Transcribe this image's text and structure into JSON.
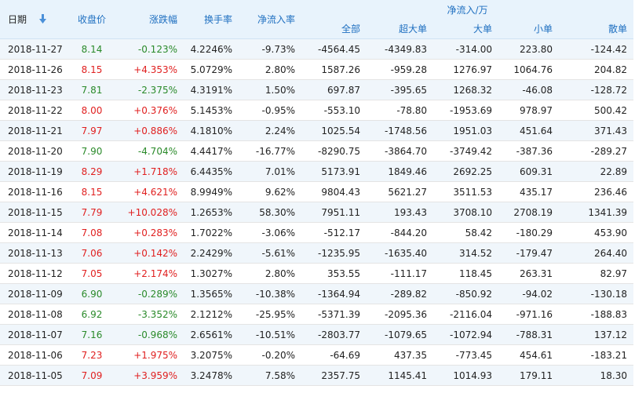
{
  "headers": {
    "date": "日期",
    "close": "收盘价",
    "change": "涨跌幅",
    "turnover": "换手率",
    "net_rate": "净流入率",
    "net_group": "净流入/万",
    "all": "全部",
    "xl": "超大单",
    "large": "大单",
    "small": "小单",
    "retail": "散单"
  },
  "icons": {
    "sort": "sort-arrow-down-icon"
  },
  "colors": {
    "up": "#e01f1f",
    "down": "#2a8a2a",
    "header_text": "#1e6fc0",
    "header_bg": "#e8f3fc"
  },
  "rows": [
    {
      "date": "2018-11-27",
      "close": "8.14",
      "change": "-0.123%",
      "turnover": "4.2246%",
      "rate": "-9.73%",
      "all": "-4564.45",
      "xl": "-4349.83",
      "large": "-314.00",
      "small": "223.80",
      "retail": "-124.42",
      "dir": "down"
    },
    {
      "date": "2018-11-26",
      "close": "8.15",
      "change": "+4.353%",
      "turnover": "5.0729%",
      "rate": "2.80%",
      "all": "1587.26",
      "xl": "-959.28",
      "large": "1276.97",
      "small": "1064.76",
      "retail": "204.82",
      "dir": "up"
    },
    {
      "date": "2018-11-23",
      "close": "7.81",
      "change": "-2.375%",
      "turnover": "4.3191%",
      "rate": "1.50%",
      "all": "697.87",
      "xl": "-395.65",
      "large": "1268.32",
      "small": "-46.08",
      "retail": "-128.72",
      "dir": "down"
    },
    {
      "date": "2018-11-22",
      "close": "8.00",
      "change": "+0.376%",
      "turnover": "5.1453%",
      "rate": "-0.95%",
      "all": "-553.10",
      "xl": "-78.80",
      "large": "-1953.69",
      "small": "978.97",
      "retail": "500.42",
      "dir": "up"
    },
    {
      "date": "2018-11-21",
      "close": "7.97",
      "change": "+0.886%",
      "turnover": "4.1810%",
      "rate": "2.24%",
      "all": "1025.54",
      "xl": "-1748.56",
      "large": "1951.03",
      "small": "451.64",
      "retail": "371.43",
      "dir": "up"
    },
    {
      "date": "2018-11-20",
      "close": "7.90",
      "change": "-4.704%",
      "turnover": "4.4417%",
      "rate": "-16.77%",
      "all": "-8290.75",
      "xl": "-3864.70",
      "large": "-3749.42",
      "small": "-387.36",
      "retail": "-289.27",
      "dir": "down"
    },
    {
      "date": "2018-11-19",
      "close": "8.29",
      "change": "+1.718%",
      "turnover": "6.4435%",
      "rate": "7.01%",
      "all": "5173.91",
      "xl": "1849.46",
      "large": "2692.25",
      "small": "609.31",
      "retail": "22.89",
      "dir": "up"
    },
    {
      "date": "2018-11-16",
      "close": "8.15",
      "change": "+4.621%",
      "turnover": "8.9949%",
      "rate": "9.62%",
      "all": "9804.43",
      "xl": "5621.27",
      "large": "3511.53",
      "small": "435.17",
      "retail": "236.46",
      "dir": "up"
    },
    {
      "date": "2018-11-15",
      "close": "7.79",
      "change": "+10.028%",
      "turnover": "1.2653%",
      "rate": "58.30%",
      "all": "7951.11",
      "xl": "193.43",
      "large": "3708.10",
      "small": "2708.19",
      "retail": "1341.39",
      "dir": "up"
    },
    {
      "date": "2018-11-14",
      "close": "7.08",
      "change": "+0.283%",
      "turnover": "1.7022%",
      "rate": "-3.06%",
      "all": "-512.17",
      "xl": "-844.20",
      "large": "58.42",
      "small": "-180.29",
      "retail": "453.90",
      "dir": "up"
    },
    {
      "date": "2018-11-13",
      "close": "7.06",
      "change": "+0.142%",
      "turnover": "2.2429%",
      "rate": "-5.61%",
      "all": "-1235.95",
      "xl": "-1635.40",
      "large": "314.52",
      "small": "-179.47",
      "retail": "264.40",
      "dir": "up"
    },
    {
      "date": "2018-11-12",
      "close": "7.05",
      "change": "+2.174%",
      "turnover": "1.3027%",
      "rate": "2.80%",
      "all": "353.55",
      "xl": "-111.17",
      "large": "118.45",
      "small": "263.31",
      "retail": "82.97",
      "dir": "up"
    },
    {
      "date": "2018-11-09",
      "close": "6.90",
      "change": "-0.289%",
      "turnover": "1.3565%",
      "rate": "-10.38%",
      "all": "-1364.94",
      "xl": "-289.82",
      "large": "-850.92",
      "small": "-94.02",
      "retail": "-130.18",
      "dir": "down"
    },
    {
      "date": "2018-11-08",
      "close": "6.92",
      "change": "-3.352%",
      "turnover": "2.1212%",
      "rate": "-25.95%",
      "all": "-5371.39",
      "xl": "-2095.36",
      "large": "-2116.04",
      "small": "-971.16",
      "retail": "-188.83",
      "dir": "down"
    },
    {
      "date": "2018-11-07",
      "close": "7.16",
      "change": "-0.968%",
      "turnover": "2.6561%",
      "rate": "-10.51%",
      "all": "-2803.77",
      "xl": "-1079.65",
      "large": "-1072.94",
      "small": "-788.31",
      "retail": "137.12",
      "dir": "down"
    },
    {
      "date": "2018-11-06",
      "close": "7.23",
      "change": "+1.975%",
      "turnover": "3.2075%",
      "rate": "-0.20%",
      "all": "-64.69",
      "xl": "437.35",
      "large": "-773.45",
      "small": "454.61",
      "retail": "-183.21",
      "dir": "up"
    },
    {
      "date": "2018-11-05",
      "close": "7.09",
      "change": "+3.959%",
      "turnover": "3.2478%",
      "rate": "7.58%",
      "all": "2357.75",
      "xl": "1145.41",
      "large": "1014.93",
      "small": "179.11",
      "retail": "18.30",
      "dir": "up"
    }
  ]
}
